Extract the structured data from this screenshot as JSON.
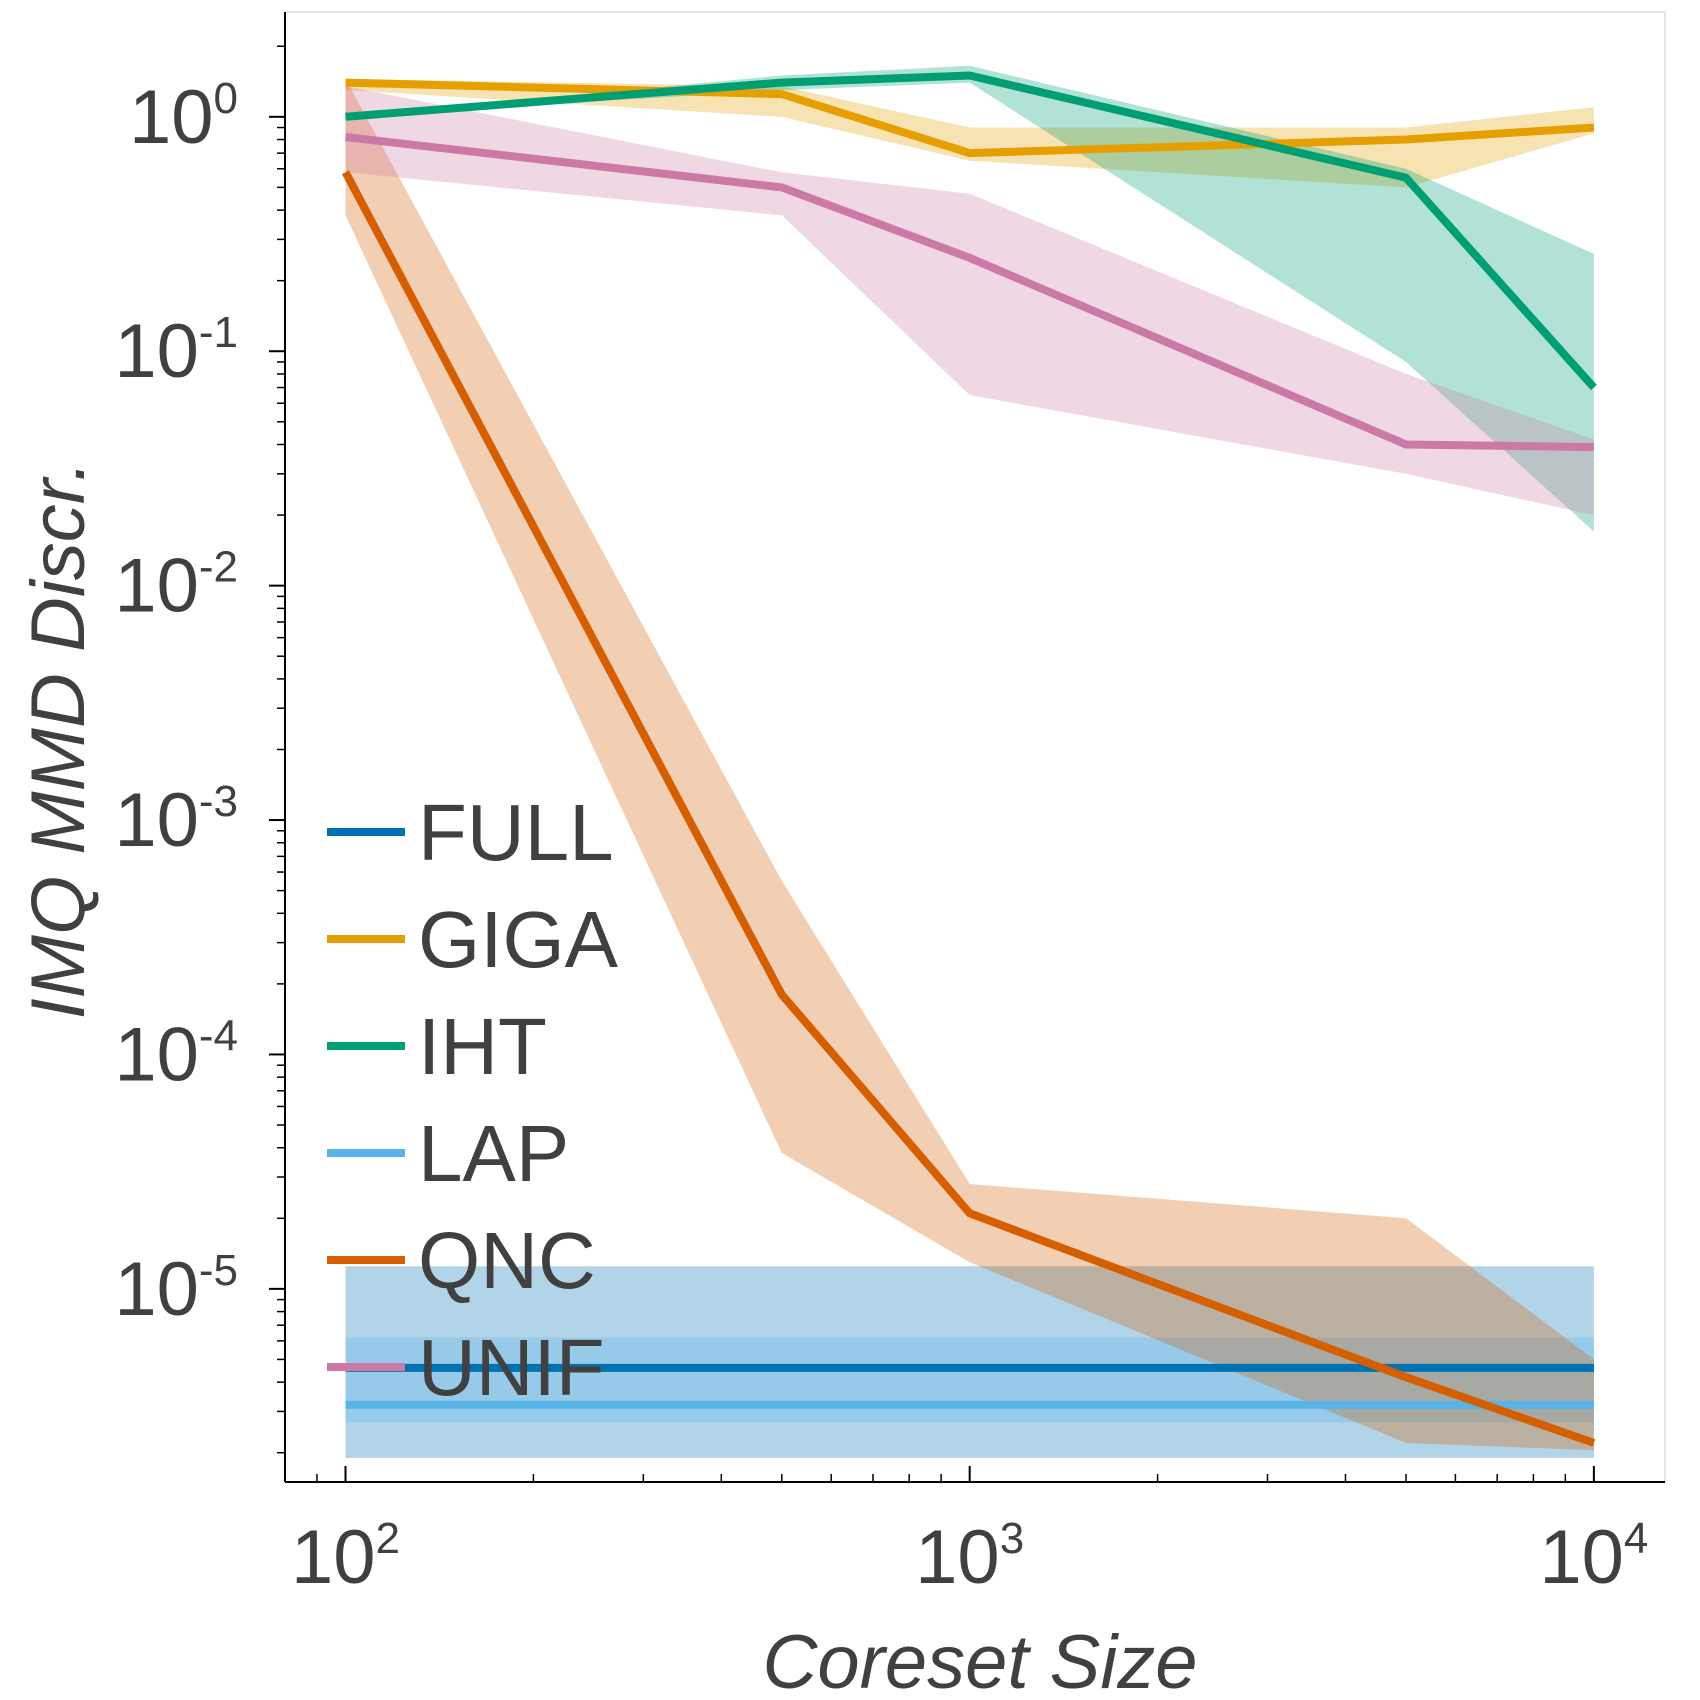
{
  "chart_data": {
    "type": "line",
    "title": "",
    "xlabel": "Coreset Size",
    "ylabel": "IMQ MMD Discr.",
    "xscale": "log",
    "yscale": "log",
    "xlim": [
      80,
      13000
    ],
    "ylim": [
      1.5e-06,
      2.8
    ],
    "x_ticks": [
      {
        "value": 100,
        "base": "10",
        "exp": "2"
      },
      {
        "value": 1000,
        "base": "10",
        "exp": "3"
      },
      {
        "value": 10000,
        "base": "10",
        "exp": "4"
      }
    ],
    "y_ticks": [
      {
        "value": 1,
        "base": "10",
        "exp": "0"
      },
      {
        "value": 0.1,
        "base": "10",
        "exp": "-1"
      },
      {
        "value": 0.01,
        "base": "10",
        "exp": "-2"
      },
      {
        "value": 0.001,
        "base": "10",
        "exp": "-3"
      },
      {
        "value": 0.0001,
        "base": "10",
        "exp": "-4"
      },
      {
        "value": 1e-05,
        "base": "10",
        "exp": "-5"
      }
    ],
    "legend_position": "lower-left",
    "series": [
      {
        "name": "FULL",
        "color": "#0072b2",
        "x": [
          100,
          10000
        ],
        "y": [
          4.6e-06,
          4.6e-06
        ],
        "lower": [
          1.9e-06,
          1.9e-06
        ],
        "upper": [
          1.25e-05,
          1.25e-05
        ]
      },
      {
        "name": "GIGA",
        "color": "#e69f00",
        "x": [
          100,
          500,
          1000,
          5000,
          10000
        ],
        "y": [
          1.4,
          1.25,
          0.7,
          0.8,
          0.9
        ],
        "lower": [
          1.3,
          1.0,
          0.65,
          0.5,
          0.85
        ],
        "upper": [
          1.45,
          1.35,
          0.9,
          0.9,
          1.1
        ]
      },
      {
        "name": "IHT",
        "color": "#009e73",
        "x": [
          100,
          500,
          1000,
          5000,
          10000
        ],
        "y": [
          1.0,
          1.4,
          1.5,
          0.55,
          0.07
        ],
        "lower": [
          1.0,
          1.3,
          1.4,
          0.09,
          0.017
        ],
        "upper": [
          1.0,
          1.5,
          1.65,
          0.6,
          0.26
        ]
      },
      {
        "name": "LAP",
        "color": "#56b4e9",
        "x": [
          100,
          10000
        ],
        "y": [
          3.2e-06,
          3.2e-06
        ],
        "lower": [
          2.7e-06,
          2.7e-06
        ],
        "upper": [
          6.2e-06,
          6.2e-06
        ]
      },
      {
        "name": "QNC",
        "color": "#d55e00",
        "x": [
          100,
          500,
          1000,
          5000,
          10000
        ],
        "y": [
          0.58,
          0.00018,
          2.1e-05,
          4.2e-06,
          2.2e-06
        ],
        "lower": [
          0.38,
          3.8e-05,
          1.3e-05,
          2.2e-06,
          2.05e-06
        ],
        "upper": [
          1.45,
          0.00055,
          2.8e-05,
          2e-05,
          5e-06
        ]
      },
      {
        "name": "UNIF",
        "color": "#cc79a7",
        "x": [
          100,
          500,
          1000,
          5000,
          10000
        ],
        "y": [
          0.82,
          0.5,
          0.25,
          0.04,
          0.039
        ],
        "lower": [
          0.58,
          0.38,
          0.065,
          0.03,
          0.02
        ],
        "upper": [
          1.35,
          0.58,
          0.47,
          0.08,
          0.042
        ]
      }
    ]
  }
}
